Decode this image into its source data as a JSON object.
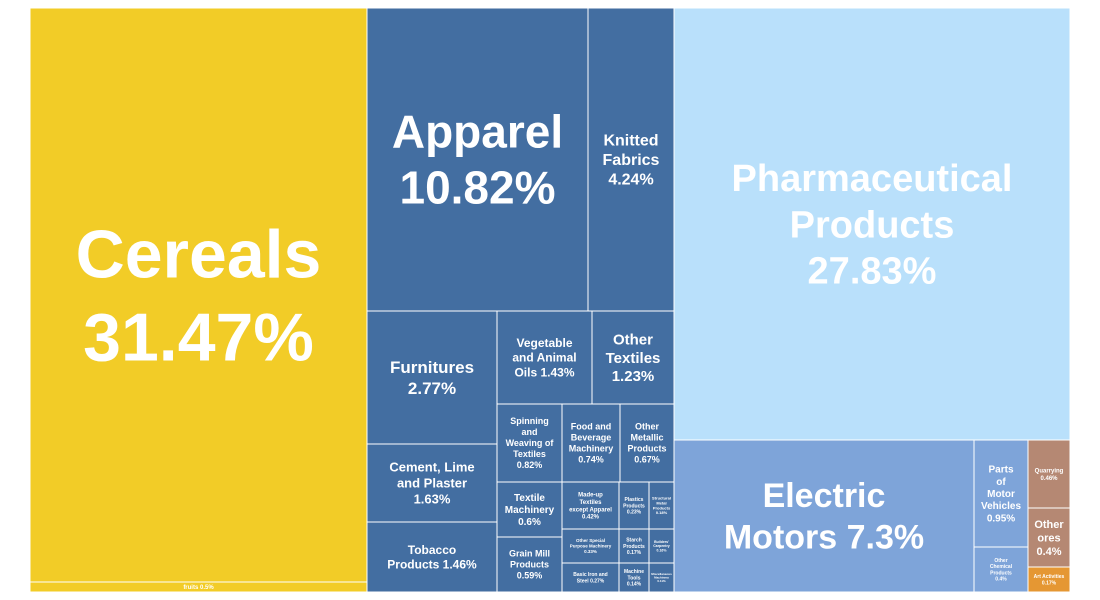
{
  "chart_data": {
    "type": "treemap",
    "colors": {
      "yellow": "#f2cc27",
      "dark_blue": "#436ea1",
      "light_blue": "#b9e0fb",
      "mid_blue": "#7ea4d9",
      "brown": "#b58873",
      "orange": "#e59733"
    },
    "items": [
      {
        "id": "cereals",
        "label": "Cereals",
        "value_label": "31.47%",
        "value": 31.47
      },
      {
        "id": "fruits",
        "label": "fruits",
        "value_label": "0.5%",
        "value": 0.5
      },
      {
        "id": "apparel",
        "label": "Apparel",
        "value_label": "10.82%",
        "value": 10.82
      },
      {
        "id": "knitted-fabrics",
        "label": "Knitted Fabrics",
        "value_label": "4.24%",
        "value": 4.24
      },
      {
        "id": "pharmaceutical-products",
        "label": "Pharmaceutical Products",
        "value_label": "27.83%",
        "value": 27.83
      },
      {
        "id": "furnitures",
        "label": "Furnitures",
        "value_label": "2.77%",
        "value": 2.77
      },
      {
        "id": "vegetable-animal-oils",
        "label": "Vegetable and Animal Oils",
        "value_label": "1.43%",
        "value": 1.43
      },
      {
        "id": "other-textiles",
        "label": "Other Textiles",
        "value_label": "1.23%",
        "value": 1.23
      },
      {
        "id": "cement-lime-plaster",
        "label": "Cement, Lime and Plaster",
        "value_label": "1.63%",
        "value": 1.63
      },
      {
        "id": "tobacco-products",
        "label": "Tobacco Products",
        "value_label": "1.46%",
        "value": 1.46
      },
      {
        "id": "spinning-weaving",
        "label": "Spinning and Weaving of Textiles",
        "value_label": "0.82%",
        "value": 0.82
      },
      {
        "id": "food-beverage-machinery",
        "label": "Food and Beverage Machinery",
        "value_label": "0.74%",
        "value": 0.74
      },
      {
        "id": "other-metallic-products",
        "label": "Other Metallic Products",
        "value_label": "0.67%",
        "value": 0.67
      },
      {
        "id": "textile-machinery",
        "label": "Textile Machinery",
        "value_label": "0.6%",
        "value": 0.6
      },
      {
        "id": "made-up-textiles",
        "label": "Made-up Textiles except Apparel",
        "value_label": "0.42%",
        "value": 0.42
      },
      {
        "id": "plastics-products",
        "label": "Plastics Products",
        "value_label": "0.23%",
        "value": 0.23
      },
      {
        "id": "structural-metal-products",
        "label": "Structural Metal Products",
        "value_label": "0.18%",
        "value": 0.18
      },
      {
        "id": "grain-mill-products",
        "label": "Grain Mill Products",
        "value_label": "0.59%",
        "value": 0.59
      },
      {
        "id": "other-special-purpose-machinery",
        "label": "Other Special Purpose Machinery",
        "value_label": "0.33%",
        "value": 0.33
      },
      {
        "id": "starch-products",
        "label": "Starch Products",
        "value_label": "0.17%",
        "value": 0.17
      },
      {
        "id": "builders-carpentry",
        "label": "Builders' Carpentry",
        "value_label": "0.16%",
        "value": 0.16
      },
      {
        "id": "basic-iron-steel",
        "label": "Basic Iron and Steel",
        "value_label": "0.27%",
        "value": 0.27
      },
      {
        "id": "machine-tools",
        "label": "Machine Tools",
        "value_label": "0.14%",
        "value": 0.14
      },
      {
        "id": "misc-machinery",
        "label": "Miscellaneous Machinery",
        "value_label": "0.11%",
        "value": 0.11
      },
      {
        "id": "electric-motors",
        "label": "Electric Motors",
        "value_label": "7.3%",
        "value": 7.3
      },
      {
        "id": "parts-motor-vehicles",
        "label": "Parts of Motor Vehicles",
        "value_label": "0.95%",
        "value": 0.95
      },
      {
        "id": "other-chemical-products",
        "label": "Other Chemical Products",
        "value_label": "0.4%",
        "value": 0.4
      },
      {
        "id": "quarrying",
        "label": "Quarrying",
        "value_label": "0.46%",
        "value": 0.46
      },
      {
        "id": "other-ores",
        "label": "Other ores",
        "value_label": "0.4%",
        "value": 0.4
      },
      {
        "id": "art-activities",
        "label": "Art Activities",
        "value_label": "0.17%",
        "value": 0.17
      }
    ]
  }
}
